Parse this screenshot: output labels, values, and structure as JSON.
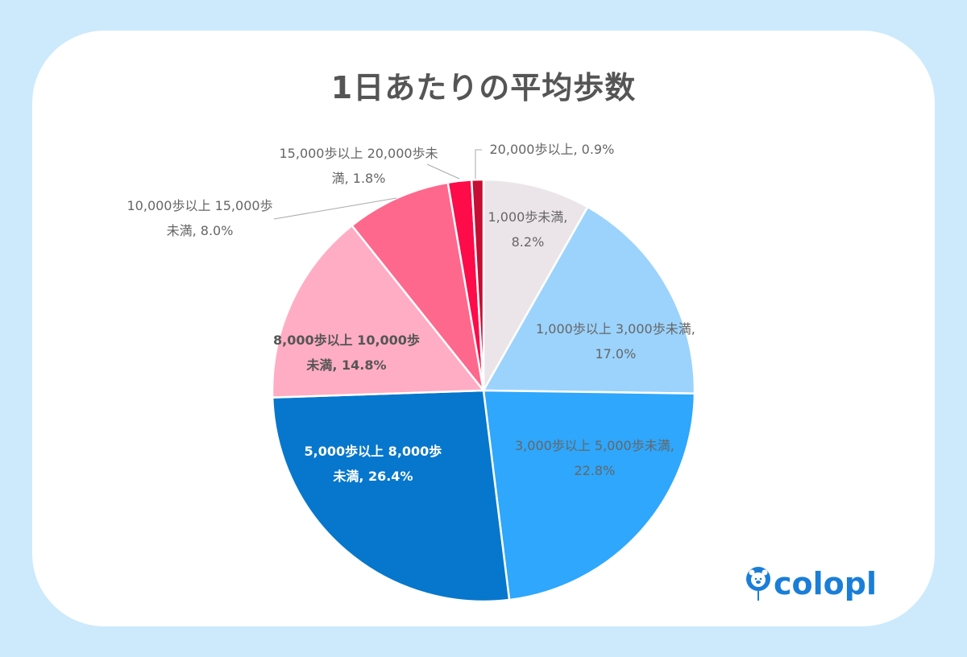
{
  "chart_data": {
    "type": "pie",
    "title": "1日あたりの平均歩数",
    "start": "top",
    "direction": "clockwise",
    "slices": [
      {
        "label": "1,000歩未満",
        "value": 8.2,
        "display": "8.2%",
        "color": "#ebe5ea"
      },
      {
        "label": "1,000歩以上 3,000歩未満",
        "value": 17.0,
        "display": "17.0%",
        "color": "#9bd3fc"
      },
      {
        "label": "3,000歩以上 5,000歩未満",
        "value": 22.8,
        "display": "22.8%",
        "color": "#2ea7fc"
      },
      {
        "label": "5,000歩以上 8,000歩未満",
        "value": 26.4,
        "display": "26.4%",
        "color": "#0677cd"
      },
      {
        "label": "8,000歩以上 10,000歩未満",
        "value": 14.8,
        "display": "14.8%",
        "color": "#ffadc4"
      },
      {
        "label": "10,000歩以上 15,000歩未満",
        "value": 8.0,
        "display": "8.0%",
        "color": "#fe688c"
      },
      {
        "label": "15,000歩以上 20,000歩未満",
        "value": 1.8,
        "display": "1.8%",
        "color": "#fe0b4a"
      },
      {
        "label": "20,000歩以上",
        "value": 0.9,
        "display": "0.9%",
        "color": "#c70d33"
      }
    ]
  },
  "labels": [
    "1,000歩未満,\n8.2%",
    "1,000歩以上 3,000歩未満,\n17.0%",
    "3,000歩以上 5,000歩未満,\n22.8%",
    "5,000歩以上 8,000歩\n未満, 26.4%",
    "8,000歩以上 10,000歩\n未満, 14.8%",
    "10,000歩以上 15,000歩\n未満, 8.0%",
    "15,000歩以上 20,000歩未\n満, 1.8%",
    "20,000歩以上, 0.9%"
  ],
  "logo": {
    "text": "colopl"
  }
}
